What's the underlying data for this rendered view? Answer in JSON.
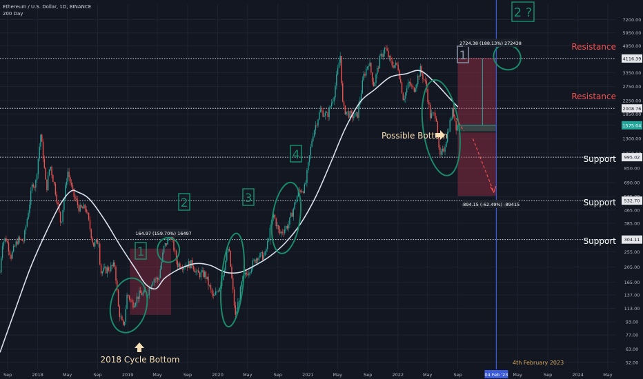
{
  "header": {
    "symbol": "Ethereum / U.S. Dollar, 1D, BINANCE",
    "indicator": "200 Day"
  },
  "colors": {
    "background": "#131722",
    "candle_up": "#26a69a",
    "candle_down": "#ef5350",
    "ma_line": "#d9e1ee",
    "resistance_text": "#ef5350",
    "annotation_green": "#1b8a6b",
    "box_red": "#b2324a",
    "box_green": "#1e6f5c",
    "vline_blue": "#3b5bdb",
    "price_tag_green": "#26a69a",
    "label_tag": "#e5e7eb"
  },
  "chart_data": {
    "type": "candlestick",
    "title": "Ethereum / U.S. Dollar, 1D, BINANCE",
    "y_scale": "log",
    "y_range": [
      47,
      9000
    ],
    "x_range": [
      "2017-08-01",
      "2024-06-01"
    ],
    "y_ticks": [
      7200.0,
      5950.0,
      4950.0,
      4116.39,
      3350.0,
      2750.0,
      2250.0,
      2008.76,
      1850.0,
      1575.04,
      1300.0,
      1050.0,
      995.02,
      850.0,
      690.0,
      565.0,
      532.7,
      465.0,
      385.0,
      304.11,
      255.0,
      205.0,
      165.0,
      137.0,
      113.0,
      93.0,
      77.0,
      63.0,
      52.0
    ],
    "highlighted_levels": [
      4116.39,
      2008.76,
      995.02,
      532.7,
      304.11
    ],
    "current_price": 1575.04,
    "x_ticks": [
      {
        "date": "2017-09-01",
        "label": "Sep"
      },
      {
        "date": "2018-01-01",
        "label": "2018"
      },
      {
        "date": "2018-05-01",
        "label": "May"
      },
      {
        "date": "2018-09-01",
        "label": "Sep"
      },
      {
        "date": "2019-01-01",
        "label": "2019"
      },
      {
        "date": "2019-05-01",
        "label": "May"
      },
      {
        "date": "2019-09-01",
        "label": "Sep"
      },
      {
        "date": "2020-01-01",
        "label": "2020"
      },
      {
        "date": "2020-05-01",
        "label": "May"
      },
      {
        "date": "2020-09-01",
        "label": "Sep"
      },
      {
        "date": "2021-01-01",
        "label": "2021"
      },
      {
        "date": "2021-05-01",
        "label": "May"
      },
      {
        "date": "2021-09-01",
        "label": "Sep"
      },
      {
        "date": "2022-01-01",
        "label": "2022"
      },
      {
        "date": "2022-05-01",
        "label": "May"
      },
      {
        "date": "2022-09-01",
        "label": "Sep"
      },
      {
        "date": "2023-02-04",
        "label": "04 Feb '23"
      },
      {
        "date": "2023-05-01",
        "label": "May"
      },
      {
        "date": "2023-09-01",
        "label": "Sep"
      },
      {
        "date": "2024-01-01",
        "label": "2024"
      },
      {
        "date": "2024-05-01",
        "label": "May"
      }
    ],
    "price_path": [
      [
        "2017-08-01",
        190
      ],
      [
        "2017-08-10",
        290
      ],
      [
        "2017-08-25",
        310
      ],
      [
        "2017-09-15",
        240
      ],
      [
        "2017-10-10",
        300
      ],
      [
        "2017-11-05",
        300
      ],
      [
        "2017-11-25",
        470
      ],
      [
        "2017-12-12",
        700
      ],
      [
        "2017-12-22",
        650
      ],
      [
        "2018-01-13",
        1380
      ],
      [
        "2018-01-22",
        1050
      ],
      [
        "2018-02-05",
        620
      ],
      [
        "2018-02-20",
        900
      ],
      [
        "2018-03-15",
        600
      ],
      [
        "2018-04-05",
        380
      ],
      [
        "2018-05-02",
        820
      ],
      [
        "2018-05-25",
        580
      ],
      [
        "2018-06-20",
        470
      ],
      [
        "2018-07-15",
        480
      ],
      [
        "2018-08-15",
        280
      ],
      [
        "2018-09-05",
        300
      ],
      [
        "2018-09-13",
        190
      ],
      [
        "2018-10-15",
        200
      ],
      [
        "2018-11-10",
        210
      ],
      [
        "2018-11-25",
        110
      ],
      [
        "2018-12-15",
        84
      ],
      [
        "2018-12-30",
        140
      ],
      [
        "2019-01-20",
        120
      ],
      [
        "2019-02-20",
        140
      ],
      [
        "2019-03-20",
        140
      ],
      [
        "2019-04-15",
        175
      ],
      [
        "2019-05-05",
        170
      ],
      [
        "2019-05-28",
        270
      ],
      [
        "2019-06-25",
        330
      ],
      [
        "2019-07-20",
        215
      ],
      [
        "2019-08-10",
        210
      ],
      [
        "2019-09-20",
        215
      ],
      [
        "2019-10-10",
        185
      ],
      [
        "2019-11-10",
        185
      ],
      [
        "2019-12-15",
        130
      ],
      [
        "2020-01-15",
        165
      ],
      [
        "2020-02-14",
        275
      ],
      [
        "2020-03-13",
        100
      ],
      [
        "2020-04-10",
        170
      ],
      [
        "2020-05-10",
        200
      ],
      [
        "2020-06-10",
        240
      ],
      [
        "2020-07-10",
        240
      ],
      [
        "2020-08-14",
        435
      ],
      [
        "2020-09-08",
        330
      ],
      [
        "2020-10-15",
        380
      ],
      [
        "2020-11-24",
        610
      ],
      [
        "2020-12-20",
        640
      ],
      [
        "2021-01-20",
        1380
      ],
      [
        "2021-02-20",
        1950
      ],
      [
        "2021-03-20",
        1800
      ],
      [
        "2021-04-15",
        2400
      ],
      [
        "2021-05-12",
        4300
      ],
      [
        "2021-05-23",
        2000
      ],
      [
        "2021-06-25",
        1800
      ],
      [
        "2021-07-20",
        1800
      ],
      [
        "2021-08-15",
        3200
      ],
      [
        "2021-09-05",
        3950
      ],
      [
        "2021-09-25",
        2800
      ],
      [
        "2021-10-20",
        4100
      ],
      [
        "2021-11-10",
        4800
      ],
      [
        "2021-12-05",
        3800
      ],
      [
        "2022-01-01",
        3700
      ],
      [
        "2022-01-23",
        2300
      ],
      [
        "2022-02-15",
        2900
      ],
      [
        "2022-03-05",
        2600
      ],
      [
        "2022-04-02",
        3500
      ],
      [
        "2022-04-25",
        2800
      ],
      [
        "2022-05-12",
        1800
      ],
      [
        "2022-06-05",
        1850
      ],
      [
        "2022-06-18",
        980
      ],
      [
        "2022-07-05",
        1100
      ],
      [
        "2022-08-12",
        1980
      ],
      [
        "2022-08-25",
        1550
      ],
      [
        "2022-09-01",
        1575
      ]
    ],
    "ma_200": [
      [
        "2017-08-01",
        60
      ],
      [
        "2017-10-01",
        110
      ],
      [
        "2017-12-01",
        200
      ],
      [
        "2018-02-01",
        330
      ],
      [
        "2018-04-01",
        500
      ],
      [
        "2018-05-15",
        610
      ],
      [
        "2018-06-15",
        600
      ],
      [
        "2018-08-01",
        540
      ],
      [
        "2018-10-01",
        400
      ],
      [
        "2018-12-01",
        280
      ],
      [
        "2019-02-01",
        200
      ],
      [
        "2019-03-15",
        160
      ],
      [
        "2019-04-25",
        150
      ],
      [
        "2019-06-01",
        175
      ],
      [
        "2019-08-01",
        200
      ],
      [
        "2019-10-01",
        215
      ],
      [
        "2019-12-01",
        210
      ],
      [
        "2020-02-01",
        190
      ],
      [
        "2020-04-01",
        190
      ],
      [
        "2020-06-01",
        210
      ],
      [
        "2020-08-01",
        240
      ],
      [
        "2020-10-01",
        290
      ],
      [
        "2020-12-01",
        380
      ],
      [
        "2021-02-01",
        560
      ],
      [
        "2021-04-01",
        900
      ],
      [
        "2021-06-01",
        1500
      ],
      [
        "2021-08-01",
        2200
      ],
      [
        "2021-10-01",
        2650
      ],
      [
        "2021-12-01",
        3150
      ],
      [
        "2022-02-01",
        3300
      ],
      [
        "2022-04-01",
        3450
      ],
      [
        "2022-06-01",
        2900
      ],
      [
        "2022-08-01",
        2300
      ],
      [
        "2022-09-01",
        2050
      ]
    ]
  },
  "annotations": {
    "labels": {
      "one_a": "1",
      "two_a": "2",
      "three": "3",
      "four": "4",
      "one_b": "1",
      "two_b": "2 ?"
    },
    "resistance_1": "Resistance",
    "resistance_2": "Resistance",
    "support_1": "Support",
    "support_2": "Support",
    "support_3": "Support",
    "possible_bottom": "Possible Bottom",
    "cycle_bottom": "2018 Cycle Bottom",
    "measure_2019": "164.97 (159.70%) 16497",
    "measure_top": "2724.38 (188.13%) 272438",
    "measure_bottom": "-894.15 (-62.49%) -89415",
    "vline_date": "4th February 2023"
  }
}
